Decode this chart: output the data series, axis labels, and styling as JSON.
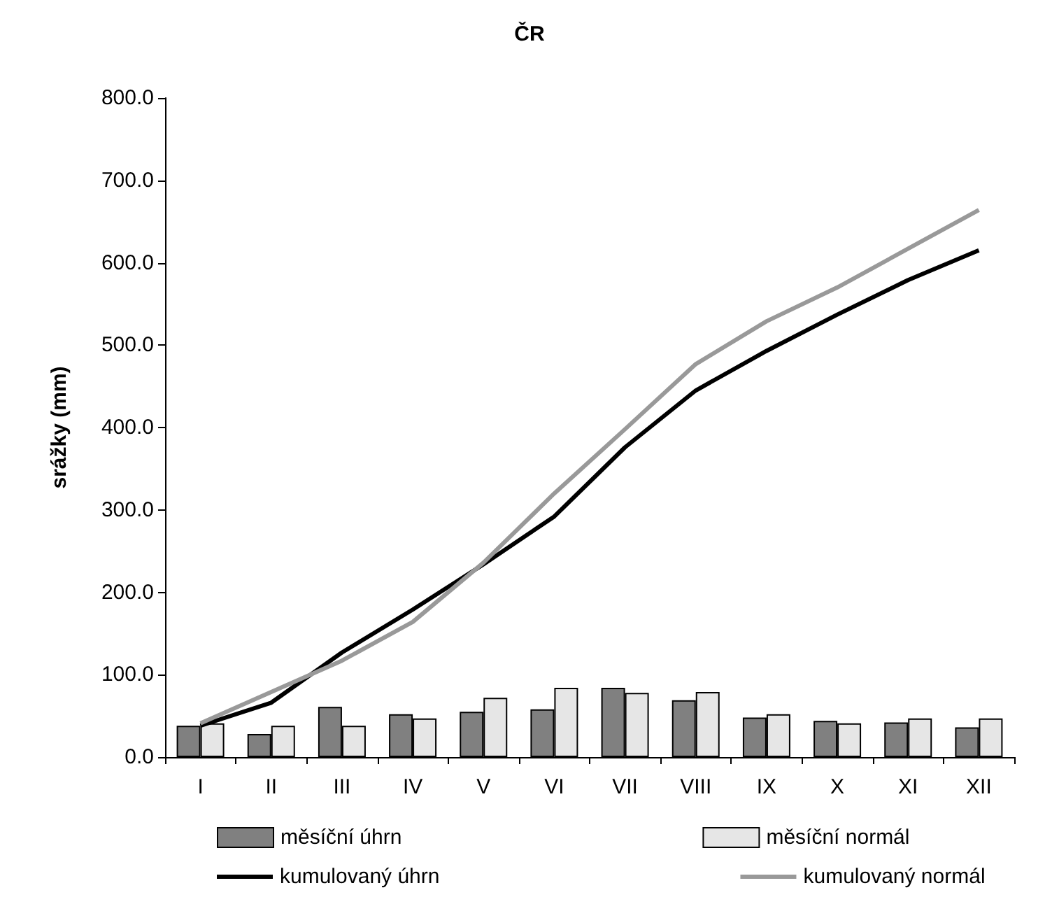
{
  "chart_data": {
    "type": "bar",
    "title": "ČR",
    "ylabel": "srážky (mm)",
    "categories": [
      "I",
      "II",
      "III",
      "IV",
      "V",
      "VI",
      "VII",
      "VIII",
      "IX",
      "X",
      "XI",
      "XII"
    ],
    "series": [
      {
        "name": "měsíční úhrn",
        "color": "#808080",
        "values": [
          38,
          28,
          61,
          52,
          55,
          58,
          84,
          69,
          48,
          44,
          42,
          36
        ]
      },
      {
        "name": "měsíční normál",
        "color": "#e6e6e6",
        "values": [
          41,
          38,
          38,
          47,
          72,
          84,
          78,
          79,
          52,
          41,
          47,
          47
        ]
      },
      {
        "name": "kumulovaný úhrn",
        "type": "line",
        "color": "#000000",
        "values": [
          38,
          66,
          127,
          179,
          234,
          292,
          376,
          445,
          493,
          537,
          579,
          615
        ]
      },
      {
        "name": "kumulovaný normál",
        "type": "line",
        "color": "#999999",
        "values": [
          41,
          79,
          117,
          164,
          236,
          320,
          398,
          477,
          529,
          570,
          617,
          664
        ]
      }
    ],
    "ylim": [
      0,
      800
    ],
    "yticks": [
      {
        "value": 0,
        "label": "0.0"
      },
      {
        "value": 100,
        "label": "100.0"
      },
      {
        "value": 200,
        "label": "200.0"
      },
      {
        "value": 300,
        "label": "300.0"
      },
      {
        "value": 400,
        "label": "400.0"
      },
      {
        "value": 500,
        "label": "500.0"
      },
      {
        "value": 600,
        "label": "600.0"
      },
      {
        "value": 700,
        "label": "700.0"
      },
      {
        "value": 800,
        "label": "800.0"
      }
    ],
    "grid": false,
    "legend": "bottom"
  }
}
